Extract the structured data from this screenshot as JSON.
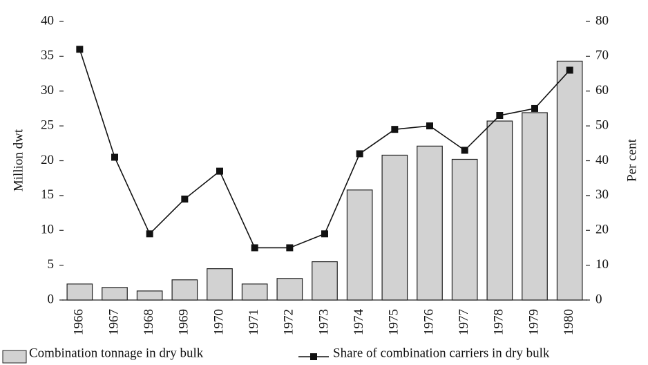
{
  "chart_data": {
    "type": "bar",
    "ylabel": "Million dwt",
    "y2label": "Per cent",
    "categories": [
      "1966",
      "1967",
      "1968",
      "1969",
      "1970",
      "1971",
      "1972",
      "1973",
      "1974",
      "1975",
      "1976",
      "1977",
      "1978",
      "1979",
      "1980"
    ],
    "series": [
      {
        "name": "Combination tonnage in dry bulk",
        "type": "bar",
        "color": "#d2d2d2",
        "values": [
          2.3,
          1.8,
          1.3,
          2.9,
          4.5,
          2.3,
          3.1,
          5.5,
          15.8,
          20.8,
          22.1,
          20.2,
          25.7,
          26.9,
          34.3
        ]
      },
      {
        "name": "Share of combination carriers in dry bulk",
        "type": "line",
        "axis": "y2",
        "color": "#111111",
        "values": [
          72,
          41,
          19,
          29,
          37,
          15,
          15,
          19,
          42,
          49,
          50,
          43,
          53,
          55,
          66
        ]
      }
    ],
    "ylim": [
      0,
      40
    ],
    "yticks": [
      0,
      5,
      10,
      15,
      20,
      25,
      30,
      35,
      40
    ],
    "y2lim": [
      0,
      80
    ],
    "y2ticks": [
      0,
      10,
      20,
      30,
      40,
      50,
      60,
      70,
      80
    ],
    "legend": "bottom"
  }
}
